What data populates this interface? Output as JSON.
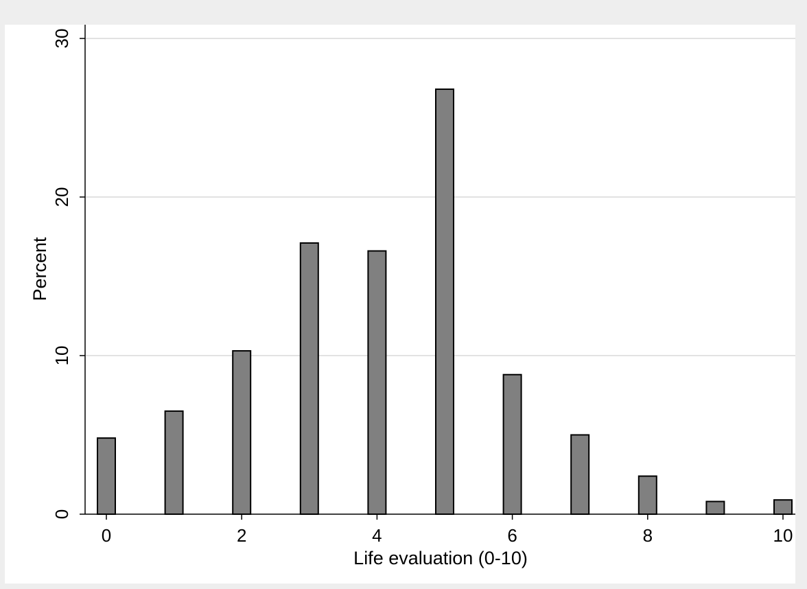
{
  "chart_data": {
    "type": "bar",
    "title": "",
    "xlabel": "Life evaluation (0-10)",
    "ylabel": "Percent",
    "x": [
      0,
      1,
      2,
      3,
      4,
      5,
      6,
      7,
      8,
      9,
      10
    ],
    "values": [
      4.8,
      6.5,
      10.3,
      17.1,
      16.6,
      26.8,
      8.8,
      5.0,
      2.4,
      0.8,
      0.9
    ],
    "xlim": [
      0,
      10
    ],
    "ylim": [
      0,
      30
    ],
    "xticks": [
      0,
      2,
      4,
      6,
      8,
      10
    ],
    "yticks": [
      0,
      10,
      20,
      30
    ],
    "grid": "horizontal",
    "colors": {
      "bar_fill": "#808080",
      "bar_stroke": "#000000",
      "outer_background": "#eeeeee",
      "plot_background": "#ffffff",
      "gridline": "#e2e2e2"
    }
  }
}
